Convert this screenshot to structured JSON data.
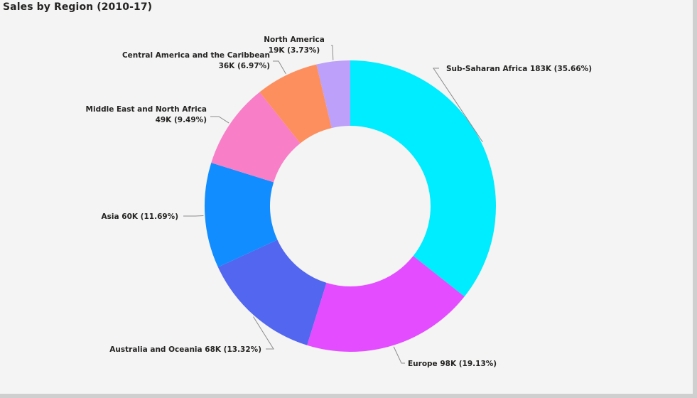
{
  "chart_data": {
    "type": "pie",
    "variant": "donut",
    "title": "Sales by Region (2010-17)",
    "slices": [
      {
        "name": "Sub-Saharan Africa",
        "value_label": "183K",
        "percent": 35.66,
        "percent_label": "35.66%",
        "color": "#00ecff"
      },
      {
        "name": "Europe",
        "value_label": "98K",
        "percent": 19.13,
        "percent_label": "19.13%",
        "color": "#e44cff"
      },
      {
        "name": "Australia and Oceania",
        "value_label": "68K",
        "percent": 13.32,
        "percent_label": "13.32%",
        "color": "#5266ef"
      },
      {
        "name": "Asia",
        "value_label": "60K",
        "percent": 11.69,
        "percent_label": "11.69%",
        "color": "#118dff"
      },
      {
        "name": "Middle East and North Africa",
        "value_label": "49K",
        "percent": 9.49,
        "percent_label": "9.49%",
        "color": "#f87ec8"
      },
      {
        "name": "Central America and the Caribbean",
        "value_label": "36K",
        "percent": 6.97,
        "percent_label": "6.97%",
        "color": "#fd8f5f"
      },
      {
        "name": "North America",
        "value_label": "19K",
        "percent": 3.73,
        "percent_label": "3.73%",
        "color": "#bca0f9"
      }
    ]
  }
}
